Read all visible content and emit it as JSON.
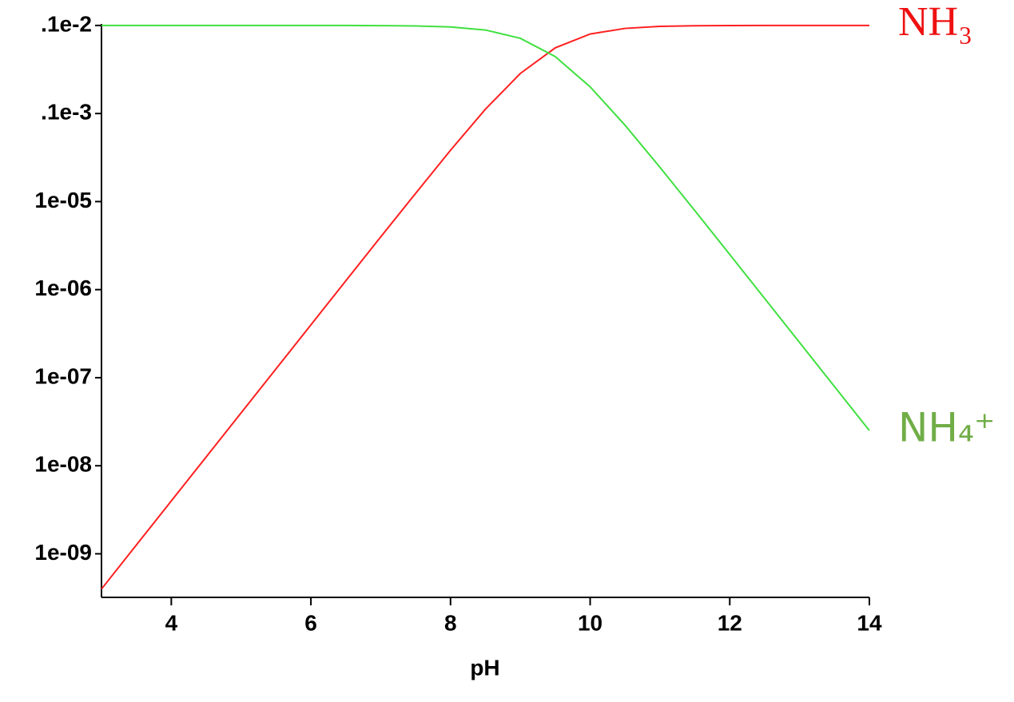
{
  "chart_data": {
    "type": "line",
    "x_label": "pH",
    "x": [
      3,
      3.5,
      4,
      4.5,
      5,
      5.5,
      6,
      6.5,
      7,
      7.5,
      8,
      8.5,
      9,
      9.5,
      10,
      10.5,
      11,
      11.5,
      12,
      12.5,
      13,
      13.5,
      14
    ],
    "series": [
      {
        "name": "NH₃",
        "color": "#ff2020",
        "label_color": "#ee1111",
        "values": [
          3.98e-10,
          1.26e-09,
          3.98e-09,
          1.26e-08,
          3.98e-08,
          1.26e-07,
          3.98e-07,
          1.26e-06,
          3.97e-06,
          1.24e-05,
          3.83e-05,
          0.000112,
          0.000285,
          0.000557,
          0.000799,
          0.000926,
          0.000976,
          0.000992,
          0.000997,
          0.000999,
          0.001,
          0.001,
          0.001
        ]
      },
      {
        "name": "NH₄⁺",
        "color": "#40e040",
        "label_color": "#70ad47",
        "values": [
          0.001,
          0.001,
          0.001,
          0.001,
          0.001,
          0.001,
          0.001,
          0.000999,
          0.000996,
          0.000988,
          0.000962,
          0.000888,
          0.000715,
          0.000443,
          0.000201,
          7.36e-05,
          2.45e-05,
          7.88e-06,
          2.51e-06,
          7.94e-07,
          2.51e-07,
          7.94e-08,
          2.51e-08
        ]
      }
    ],
    "xlim": [
      3,
      14
    ],
    "xticks": [
      4,
      6,
      8,
      10,
      12,
      14
    ],
    "ylim": [
      3.2e-10,
      0.00104
    ],
    "log_y": true,
    "yticks": [
      {
        "value": 0.001,
        "label": ".1e-2"
      },
      {
        "value": 0.0001,
        "label": ".1e-3"
      },
      {
        "value": 1e-05,
        "label": "1e-05"
      },
      {
        "value": 1e-06,
        "label": "1e-06"
      },
      {
        "value": 1e-07,
        "label": "1e-07"
      },
      {
        "value": 1e-08,
        "label": "1e-08"
      },
      {
        "value": 1e-09,
        "label": "1e-09"
      }
    ]
  }
}
